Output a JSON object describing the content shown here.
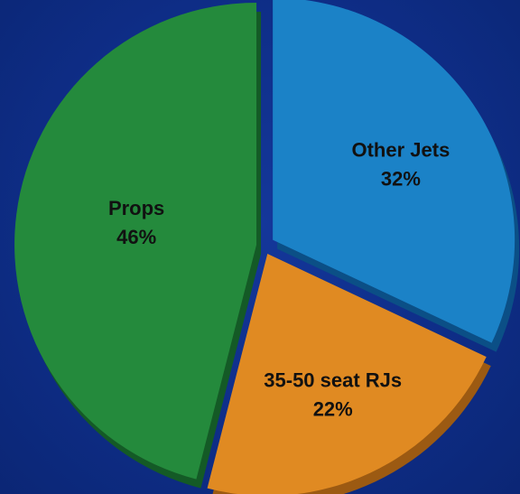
{
  "chart_data": {
    "type": "pie",
    "title": "",
    "slices": [
      {
        "label": "Other Jets",
        "value": 32,
        "value_label": "32%",
        "color": "#1b82c7"
      },
      {
        "label": "35-50 seat RJs",
        "value": 22,
        "value_label": "22%",
        "color": "#e08a22"
      },
      {
        "label": "Props",
        "value": 46,
        "value_label": "46%",
        "color": "#248a3c"
      }
    ],
    "start_angle_deg": 0,
    "direction": "clockwise",
    "exploded": true,
    "legend": "none"
  },
  "colors": {
    "background": "#0e2d86",
    "edge_dark": {
      "Other Jets": "#0b4f86",
      "35-50 seat RJs": "#9c5a12",
      "Props": "#145a26"
    }
  }
}
